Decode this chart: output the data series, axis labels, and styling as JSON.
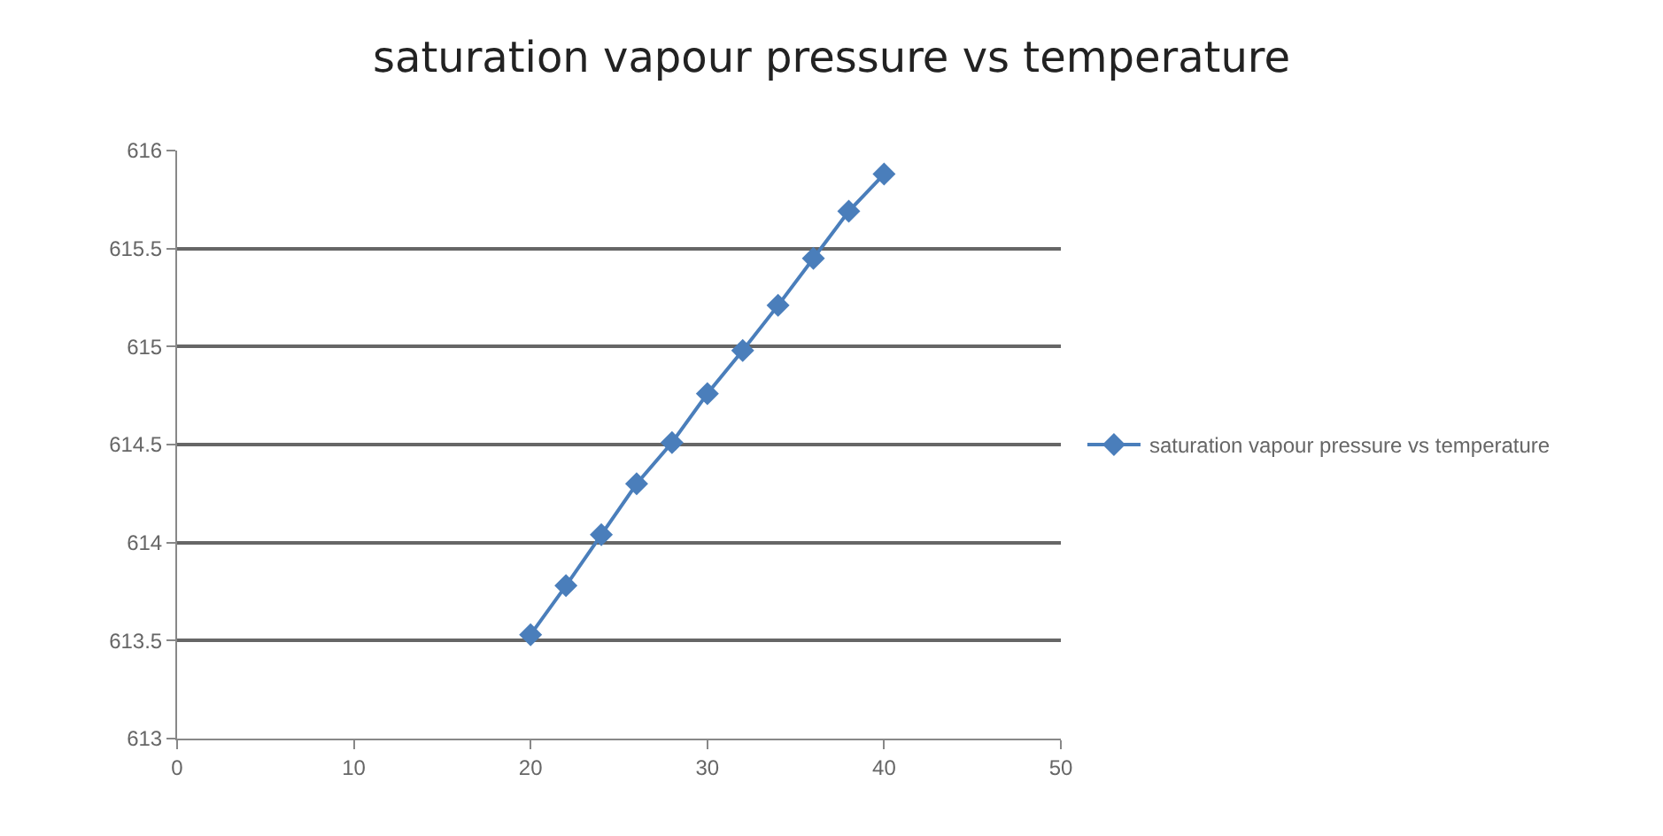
{
  "chart_data": {
    "type": "line",
    "title": "saturation vapour pressure vs temperature",
    "x": [
      20,
      22,
      24,
      26,
      28,
      30,
      32,
      34,
      36,
      38,
      40
    ],
    "series": [
      {
        "name": "saturation vapour pressure vs temperature",
        "color": "#4a7ebb",
        "values": [
          613.53,
          613.78,
          614.04,
          614.3,
          614.51,
          614.76,
          614.98,
          615.21,
          615.45,
          615.69,
          615.88
        ]
      }
    ],
    "xlim": [
      0,
      50
    ],
    "xticks": [
      0,
      10,
      20,
      30,
      40,
      50
    ],
    "ylim": [
      613,
      616
    ],
    "yticks": [
      613,
      613.5,
      614,
      614.5,
      615,
      615.5,
      616
    ],
    "grid": "y",
    "legend": "right",
    "marker": "diamond",
    "line_style": "solid"
  }
}
